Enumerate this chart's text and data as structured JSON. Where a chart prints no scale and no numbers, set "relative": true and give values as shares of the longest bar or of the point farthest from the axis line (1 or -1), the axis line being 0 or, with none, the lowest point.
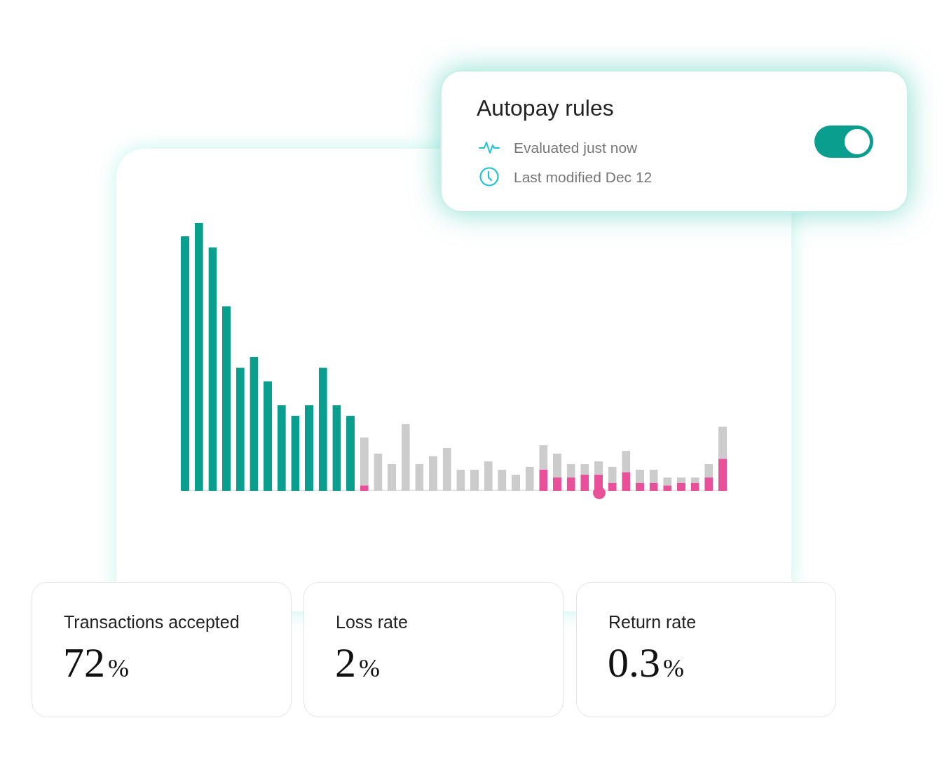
{
  "chart_data": [
    {
      "type": "other",
      "title": "Autopay rules",
      "annotations": [
        "Evaluated just now",
        "Last modified Dec 12"
      ]
    },
    {
      "type": "bar",
      "relative": true,
      "stacked": true,
      "categories": [
        null,
        null,
        null,
        null,
        null,
        null,
        null,
        null,
        null,
        null,
        null,
        null,
        null,
        null,
        null,
        null,
        null,
        null,
        null,
        null,
        null,
        null,
        null,
        null,
        null,
        null,
        null,
        null,
        null,
        null,
        null,
        null,
        null,
        null,
        null,
        null,
        null,
        null,
        null,
        null
      ],
      "series": [
        {
          "color": "#e8509a",
          "values": [
            null,
            null,
            null,
            null,
            null,
            null,
            null,
            null,
            null,
            null,
            null,
            null,
            null,
            0.02,
            null,
            null,
            null,
            null,
            null,
            null,
            null,
            null,
            null,
            null,
            null,
            null,
            0.08,
            0.05,
            0.05,
            0.06,
            0.06,
            0.03,
            0.07,
            0.03,
            0.03,
            0.02,
            0.03,
            0.03,
            0.05,
            0.12
          ]
        },
        {
          "color": "#cccccc",
          "values": [
            null,
            null,
            null,
            null,
            null,
            null,
            null,
            null,
            null,
            null,
            null,
            null,
            null,
            0.18,
            0.14,
            0.1,
            0.25,
            0.1,
            0.13,
            0.16,
            0.08,
            0.08,
            0.11,
            0.08,
            0.06,
            0.09,
            0.09,
            0.09,
            0.05,
            0.04,
            0.05,
            0.06,
            0.08,
            0.05,
            0.05,
            0.03,
            0.02,
            0.02,
            0.05,
            0.12
          ]
        },
        {
          "color": "#0a9e8f",
          "values": [
            0.95,
            1,
            0.91,
            0.69,
            0.46,
            0.5,
            0.41,
            0.32,
            0.28,
            0.32,
            0.46,
            0.32,
            0.28,
            null,
            null,
            null,
            null,
            null,
            null,
            null,
            null,
            null,
            null,
            null,
            null,
            null,
            null,
            null,
            null,
            null,
            null,
            null,
            null,
            null,
            null,
            null,
            null,
            null,
            null,
            null
          ]
        }
      ]
    },
    {
      "type": "other",
      "title": "Transactions accepted",
      "annotations": [
        "72%"
      ]
    },
    {
      "type": "other",
      "title": "Loss rate",
      "annotations": [
        "2%"
      ]
    },
    {
      "type": "other",
      "title": "Return rate",
      "annotations": [
        "0.3%"
      ]
    }
  ]
}
